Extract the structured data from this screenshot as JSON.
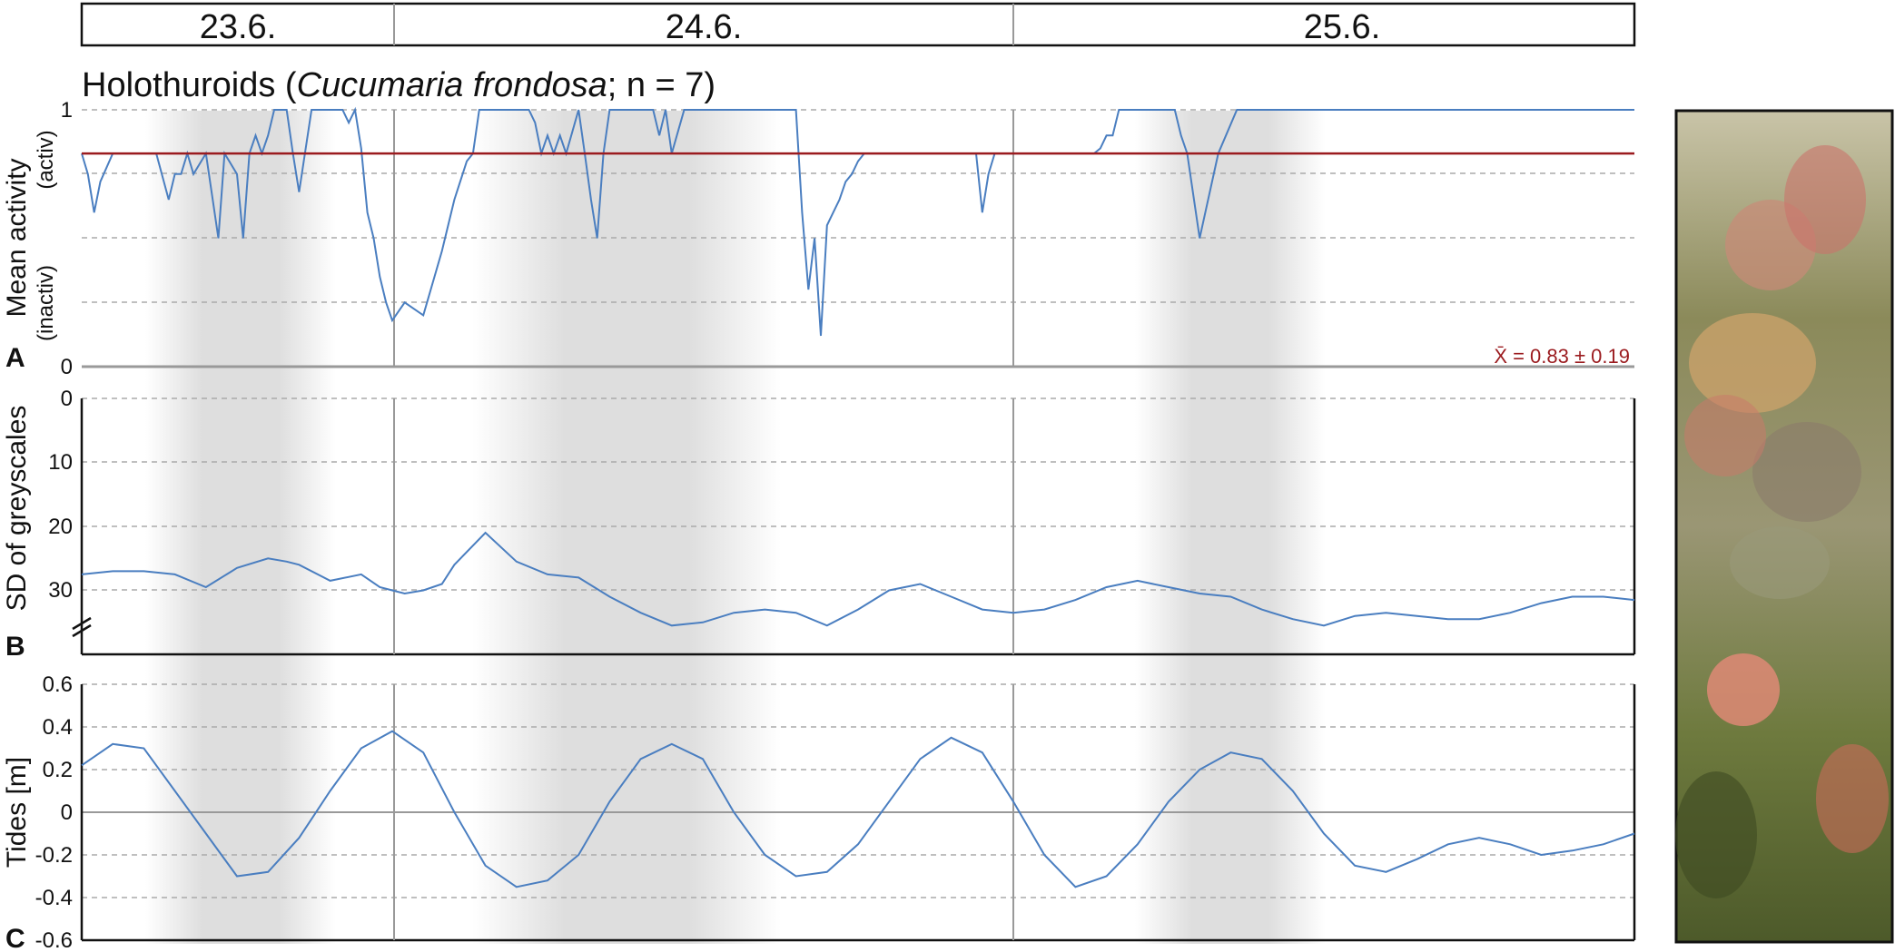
{
  "dates": [
    "23.6.",
    "24.6.",
    "25.6."
  ],
  "title": {
    "prefix": "Holothuroids (",
    "species": "Cucumaria frondosa",
    "suffix": "; n = 7)"
  },
  "colors": {
    "series": "#4a7ec0",
    "mean_line": "#9b1b1f",
    "night_shade": "#dedede",
    "grid": "#aaaaaa"
  },
  "panels": {
    "A": {
      "letter": "A",
      "ylabel": "Mean activity",
      "ylabel_active": "(activ)",
      "ylabel_inactive": "(inactiv)",
      "ticks": [
        "1",
        "0"
      ],
      "mean_label": "X̄ = 0.83 ± 0.19"
    },
    "B": {
      "letter": "B",
      "ylabel": "SD of greyscales",
      "ticks": [
        "0",
        "10",
        "20",
        "30"
      ]
    },
    "C": {
      "letter": "C",
      "ylabel": "Tides [m]",
      "ticks": [
        "0.6",
        "0.4",
        "0.2",
        "0",
        "-0.2",
        "-0.4",
        "-0.6"
      ]
    }
  },
  "photo": {
    "icon": "sea-cucumber-photo"
  },
  "chart_data": [
    {
      "type": "line",
      "panel": "A",
      "title": "Holothuroids (Cucumaria frondosa; n = 7)",
      "ylabel": "Mean activity",
      "xlim": [
        0,
        2.5
      ],
      "ylim": [
        0,
        1
      ],
      "grid": "dashed horizontal",
      "mean": 0.83,
      "sd": 0.19,
      "x": [
        0,
        0.01,
        0.02,
        0.03,
        0.05,
        0.08,
        0.12,
        0.14,
        0.15,
        0.16,
        0.17,
        0.18,
        0.2,
        0.22,
        0.23,
        0.25,
        0.26,
        0.27,
        0.28,
        0.29,
        0.3,
        0.31,
        0.32,
        0.33,
        0.34,
        0.35,
        0.37,
        0.38,
        0.39,
        0.4,
        0.41,
        0.42,
        0.43,
        0.44,
        0.45,
        0.46,
        0.47,
        0.48,
        0.49,
        0.5,
        0.52,
        0.55,
        0.58,
        0.6,
        0.62,
        0.63,
        0.64,
        0.65,
        0.67,
        0.68,
        0.7,
        0.72,
        0.73,
        0.74,
        0.75,
        0.76,
        0.77,
        0.78,
        0.8,
        0.81,
        0.82,
        0.83,
        0.84,
        0.85,
        0.86,
        0.87,
        0.88,
        0.89,
        0.9,
        0.92,
        0.93,
        0.94,
        0.95,
        0.97,
        1.0,
        1.05,
        1.1,
        1.15,
        1.16,
        1.17,
        1.18,
        1.19,
        1.2,
        1.21,
        1.22,
        1.23,
        1.24,
        1.25,
        1.26,
        1.27,
        1.28,
        1.3,
        1.33,
        1.36,
        1.4,
        1.42,
        1.43,
        1.44,
        1.45,
        1.46,
        1.47,
        1.48,
        1.5,
        1.53,
        1.56,
        1.6,
        1.63,
        1.64,
        1.65,
        1.66,
        1.67,
        1.68,
        1.7,
        1.72,
        1.73,
        1.74,
        1.75,
        1.76,
        1.77,
        1.78,
        1.8,
        1.83,
        1.86,
        1.9,
        1.95,
        2.0,
        2.05,
        2.1,
        2.15,
        2.2,
        2.25,
        2.26,
        2.27,
        2.28,
        2.3,
        2.35,
        2.4,
        2.42,
        2.44,
        2.46,
        2.48,
        2.5
      ],
      "values": [
        0.83,
        0.75,
        0.6,
        0.72,
        0.83,
        0.83,
        0.83,
        0.65,
        0.75,
        0.75,
        0.83,
        0.75,
        0.83,
        0.5,
        0.83,
        0.75,
        0.5,
        0.83,
        0.9,
        0.83,
        0.9,
        1.0,
        1.0,
        1.0,
        0.83,
        0.68,
        1.0,
        1.0,
        1.0,
        1.0,
        1.0,
        1.0,
        0.95,
        1.0,
        0.85,
        0.6,
        0.5,
        0.35,
        0.25,
        0.18,
        0.25,
        0.2,
        0.45,
        0.65,
        0.8,
        0.83,
        1.0,
        1.0,
        1.0,
        1.0,
        1.0,
        1.0,
        0.95,
        0.83,
        0.9,
        0.83,
        0.9,
        0.83,
        1.0,
        0.83,
        0.65,
        0.5,
        0.83,
        1.0,
        1.0,
        1.0,
        1.0,
        1.0,
        1.0,
        1.0,
        0.9,
        1.0,
        0.83,
        1.0,
        1.0,
        1.0,
        1.0,
        1.0,
        0.6,
        0.3,
        0.5,
        0.12,
        0.55,
        0.6,
        0.65,
        0.72,
        0.75,
        0.8,
        0.83,
        0.83,
        0.83,
        0.83,
        0.83,
        0.83,
        0.83,
        0.83,
        0.83,
        0.83,
        0.6,
        0.75,
        0.83,
        0.83,
        0.83,
        0.83,
        0.83,
        0.83,
        0.83,
        0.85,
        0.9,
        0.9,
        1.0,
        1.0,
        1.0,
        1.0,
        1.0,
        1.0,
        1.0,
        1.0,
        0.9,
        0.83,
        0.5,
        0.83,
        1.0,
        1.0,
        1.0,
        1.0,
        1.0,
        1.0,
        1.0,
        1.0,
        1.0,
        1.0,
        1.0,
        1.0,
        1.0,
        1.0,
        1.0,
        1.0,
        1.0,
        1.0,
        1.0,
        1.0
      ]
    },
    {
      "type": "line",
      "panel": "B",
      "ylabel": "SD of greyscales",
      "xlim": [
        0,
        2.5
      ],
      "ylim": [
        0,
        40
      ],
      "y_inverted": true,
      "grid": "dashed horizontal",
      "x": [
        0,
        0.05,
        0.1,
        0.15,
        0.2,
        0.25,
        0.3,
        0.33,
        0.35,
        0.4,
        0.45,
        0.48,
        0.5,
        0.52,
        0.55,
        0.58,
        0.6,
        0.65,
        0.7,
        0.75,
        0.8,
        0.85,
        0.9,
        0.95,
        1.0,
        1.05,
        1.1,
        1.15,
        1.2,
        1.25,
        1.3,
        1.35,
        1.4,
        1.45,
        1.5,
        1.55,
        1.6,
        1.65,
        1.7,
        1.75,
        1.8,
        1.85,
        1.9,
        1.95,
        2.0,
        2.05,
        2.1,
        2.15,
        2.2,
        2.25,
        2.3,
        2.35,
        2.4,
        2.45,
        2.5
      ],
      "values": [
        27.5,
        27.0,
        27.0,
        27.5,
        29.5,
        26.5,
        25.0,
        25.5,
        26.0,
        28.5,
        27.5,
        29.5,
        30.0,
        30.5,
        30.0,
        29.0,
        26.0,
        21.0,
        25.5,
        27.5,
        28.0,
        31.0,
        33.5,
        35.5,
        35.0,
        33.5,
        33.0,
        33.5,
        35.5,
        33.0,
        30.0,
        29.0,
        31.0,
        33.0,
        33.5,
        33.0,
        31.5,
        29.5,
        28.5,
        29.5,
        30.5,
        31.0,
        33.0,
        34.5,
        35.5,
        34.0,
        33.5,
        34.0,
        34.5,
        34.5,
        33.5,
        32.0,
        31.0,
        31.0,
        31.5
      ]
    },
    {
      "type": "line",
      "panel": "C",
      "ylabel": "Tides [m]",
      "xlim": [
        0,
        2.5
      ],
      "ylim": [
        -0.6,
        0.6
      ],
      "grid": "dashed horizontal",
      "x": [
        0,
        0.05,
        0.1,
        0.15,
        0.2,
        0.25,
        0.3,
        0.35,
        0.4,
        0.45,
        0.5,
        0.55,
        0.6,
        0.65,
        0.7,
        0.75,
        0.8,
        0.85,
        0.9,
        0.95,
        1.0,
        1.05,
        1.1,
        1.15,
        1.2,
        1.25,
        1.3,
        1.35,
        1.4,
        1.45,
        1.5,
        1.55,
        1.6,
        1.65,
        1.7,
        1.75,
        1.8,
        1.85,
        1.9,
        1.95,
        2.0,
        2.05,
        2.1,
        2.15,
        2.2,
        2.25,
        2.3,
        2.35,
        2.4,
        2.45,
        2.5
      ],
      "values": [
        0.22,
        0.32,
        0.3,
        0.1,
        -0.1,
        -0.3,
        -0.28,
        -0.12,
        0.1,
        0.3,
        0.38,
        0.28,
        0.0,
        -0.25,
        -0.35,
        -0.32,
        -0.2,
        0.05,
        0.25,
        0.32,
        0.25,
        0.0,
        -0.2,
        -0.3,
        -0.28,
        -0.15,
        0.05,
        0.25,
        0.35,
        0.28,
        0.05,
        -0.2,
        -0.35,
        -0.3,
        -0.15,
        0.05,
        0.2,
        0.28,
        0.25,
        0.1,
        -0.1,
        -0.25,
        -0.28,
        -0.22,
        -0.15,
        -0.12,
        -0.15,
        -0.2,
        -0.18,
        -0.15,
        -0.1
      ]
    }
  ]
}
